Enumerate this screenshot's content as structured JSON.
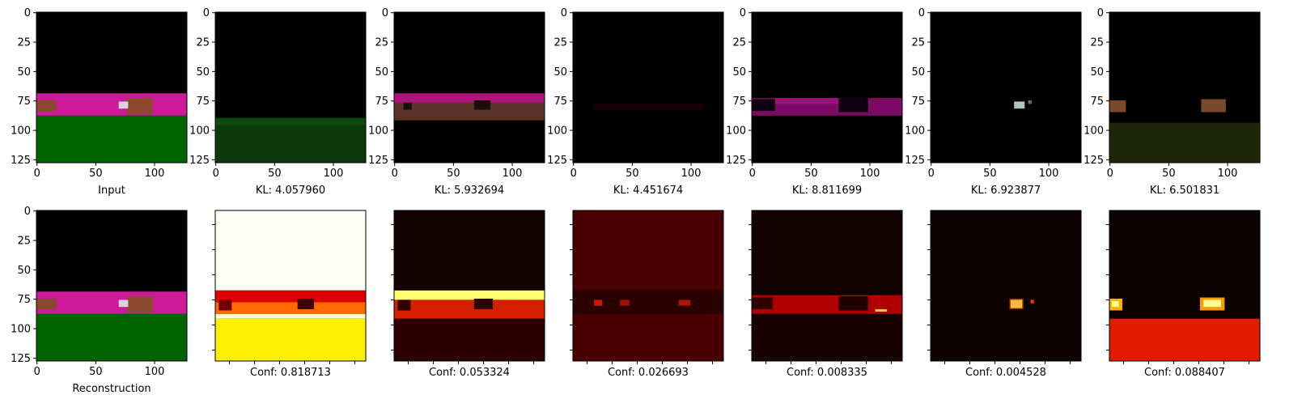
{
  "chart_data": [
    {
      "type": "image",
      "row": 0,
      "col": 0,
      "xlabel": "Input",
      "kind": "rgb",
      "scene": "full",
      "xticks": [
        0,
        50,
        100
      ],
      "yticks": [
        0,
        25,
        50,
        75,
        100,
        125
      ],
      "xlim": [
        0,
        128
      ],
      "ylim": [
        128,
        0
      ],
      "show_ytick_labels": true
    },
    {
      "type": "image",
      "row": 0,
      "col": 1,
      "xlabel": "KL: 4.057960",
      "kind": "rgb",
      "scene": "ground",
      "xticks": [
        0,
        50,
        100
      ],
      "yticks": [
        0,
        25,
        50,
        75,
        100,
        125
      ],
      "xlim": [
        0,
        128
      ],
      "ylim": [
        128,
        0
      ],
      "show_ytick_labels": true
    },
    {
      "type": "image",
      "row": 0,
      "col": 2,
      "xlabel": "KL: 5.932694",
      "kind": "rgb",
      "scene": "wall",
      "xticks": [
        0,
        50,
        100
      ],
      "yticks": [
        0,
        25,
        50,
        75,
        100,
        125
      ],
      "xlim": [
        0,
        128
      ],
      "ylim": [
        128,
        0
      ],
      "show_ytick_labels": true
    },
    {
      "type": "image",
      "row": 0,
      "col": 3,
      "xlabel": "KL: 4.451674",
      "kind": "rgb",
      "scene": "dark",
      "xticks": [
        0,
        50,
        100
      ],
      "yticks": [
        0,
        25,
        50,
        75,
        100,
        125
      ],
      "xlim": [
        0,
        128
      ],
      "ylim": [
        128,
        0
      ],
      "show_ytick_labels": true
    },
    {
      "type": "image",
      "row": 0,
      "col": 4,
      "xlabel": "KL: 8.811699",
      "kind": "rgb",
      "scene": "magenta",
      "xticks": [
        0,
        50,
        100
      ],
      "yticks": [
        0,
        25,
        50,
        75,
        100,
        125
      ],
      "xlim": [
        0,
        128
      ],
      "ylim": [
        128,
        0
      ],
      "show_ytick_labels": true
    },
    {
      "type": "image",
      "row": 0,
      "col": 5,
      "xlabel": "KL: 6.923877",
      "kind": "rgb",
      "scene": "small",
      "xticks": [
        0,
        50,
        100
      ],
      "yticks": [
        0,
        25,
        50,
        75,
        100,
        125
      ],
      "xlim": [
        0,
        128
      ],
      "ylim": [
        128,
        0
      ],
      "show_ytick_labels": true
    },
    {
      "type": "image",
      "row": 0,
      "col": 6,
      "xlabel": "KL: 6.501831",
      "kind": "rgb",
      "scene": "objects",
      "xticks": [
        0,
        50,
        100
      ],
      "yticks": [
        0,
        25,
        50,
        75,
        100,
        125
      ],
      "xlim": [
        0,
        128
      ],
      "ylim": [
        128,
        0
      ],
      "show_ytick_labels": true
    },
    {
      "type": "image",
      "row": 1,
      "col": 0,
      "xlabel": "Reconstruction",
      "kind": "rgb",
      "scene": "full",
      "xticks": [
        0,
        50,
        100
      ],
      "yticks": [
        0,
        25,
        50,
        75,
        100,
        125
      ],
      "xlim": [
        0,
        128
      ],
      "ylim": [
        128,
        0
      ],
      "show_ytick_labels": true
    },
    {
      "type": "heatmap",
      "row": 1,
      "col": 1,
      "xlabel": "Conf: 0.818713",
      "colormap": "hot",
      "scene": "conf1",
      "show_ytick_labels": false
    },
    {
      "type": "heatmap",
      "row": 1,
      "col": 2,
      "xlabel": "Conf: 0.053324",
      "colormap": "hot",
      "scene": "conf2",
      "show_ytick_labels": false
    },
    {
      "type": "heatmap",
      "row": 1,
      "col": 3,
      "xlabel": "Conf: 0.026693",
      "colormap": "hot",
      "scene": "conf3",
      "show_ytick_labels": false
    },
    {
      "type": "heatmap",
      "row": 1,
      "col": 4,
      "xlabel": "Conf: 0.008335",
      "colormap": "hot",
      "scene": "conf4",
      "show_ytick_labels": false
    },
    {
      "type": "heatmap",
      "row": 1,
      "col": 5,
      "xlabel": "Conf: 0.004528",
      "colormap": "hot",
      "scene": "conf5",
      "show_ytick_labels": false
    },
    {
      "type": "heatmap",
      "row": 1,
      "col": 6,
      "xlabel": "Conf: 0.088407",
      "colormap": "hot",
      "scene": "conf6",
      "show_ytick_labels": false
    }
  ],
  "colors": {
    "background": "#000000",
    "magenta_wall": "#cc1a99",
    "green_floor": "#006400",
    "object_brown": "#8b4a2e",
    "hot_white": "#fffff4",
    "hot_yellow": "#ffef00",
    "hot_red": "#e00000",
    "hot_dark": "#150000"
  }
}
